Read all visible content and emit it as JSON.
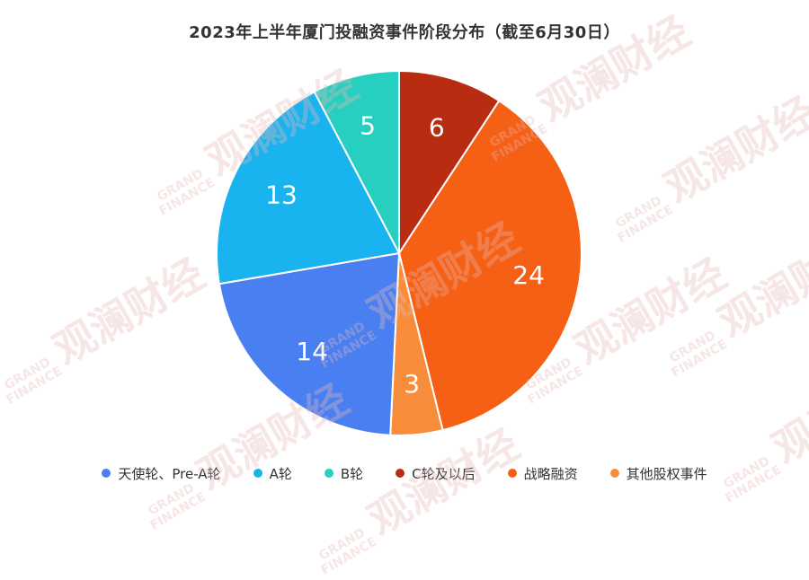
{
  "chart_data": {
    "type": "pie",
    "title": "2023年上半年厦门投融资事件阶段分布（截至6月30日）",
    "categories": [
      "天使轮、Pre-A轮",
      "A轮",
      "B轮",
      "C轮及以后",
      "战略融资",
      "其他股权事件"
    ],
    "values": [
      14,
      13,
      5,
      6,
      24,
      3
    ],
    "colors": [
      "#4a7ff2",
      "#19b3f0",
      "#26cfc0",
      "#b82d12",
      "#f56014",
      "#f78d3a"
    ],
    "data_labels_shown": true,
    "legend_position": "bottom"
  },
  "watermark": {
    "brand": "观澜财经",
    "english_line1": "GRAND",
    "english_line2": "FINANCE"
  }
}
